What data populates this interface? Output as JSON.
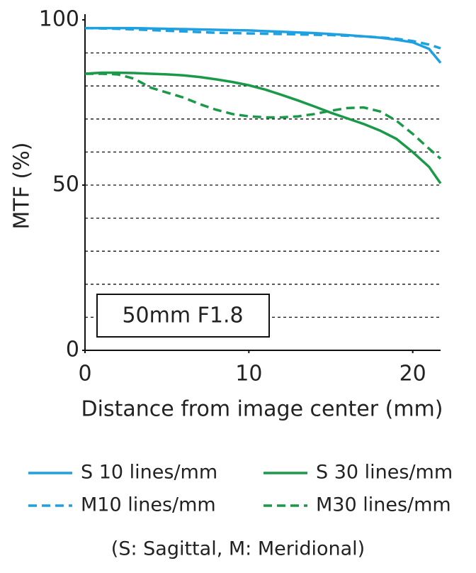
{
  "chart_data": {
    "type": "line",
    "y_label": "MTF (%)",
    "x_label": "Distance from image center (mm)",
    "annotation": "50mm F1.8",
    "footnote": "(S: Sagittal, M: Meridional)",
    "x": [
      0,
      1,
      2,
      3,
      4,
      5,
      6,
      7,
      8,
      9,
      10,
      11,
      12,
      13,
      14,
      15,
      16,
      17,
      18,
      19,
      20,
      21,
      21.7
    ],
    "series": [
      {
        "name": "S 10 lines/mm",
        "color": "#1fa0e0",
        "dash": false,
        "values": [
          97.5,
          97.5,
          97.5,
          97.5,
          97.4,
          97.3,
          97.2,
          97.1,
          97,
          96.9,
          96.8,
          96.6,
          96.4,
          96.2,
          96,
          95.7,
          95.4,
          95,
          94.6,
          94,
          93.2,
          91.2,
          87
        ]
      },
      {
        "name": "M10 lines/mm",
        "color": "#1fa0e0",
        "dash": true,
        "values": [
          97.5,
          97.4,
          97.3,
          97.1,
          96.9,
          96.7,
          96.5,
          96.3,
          96.1,
          96,
          95.9,
          95.8,
          95.7,
          95.6,
          95.5,
          95.4,
          95.2,
          95,
          94.7,
          94.3,
          93.6,
          92.5,
          91.4
        ]
      },
      {
        "name": "S 30 lines/mm",
        "color": "#1a9a48",
        "dash": false,
        "values": [
          83.7,
          84,
          84,
          83.9,
          83.7,
          83.5,
          83.2,
          82.7,
          82,
          81.2,
          80.2,
          78.9,
          77.3,
          75.6,
          73.8,
          71.9,
          70.2,
          68.5,
          66.5,
          64,
          60,
          55.5,
          50.5
        ]
      },
      {
        "name": "M30 lines/mm",
        "color": "#1a9a48",
        "dash": true,
        "values": [
          83.7,
          83.7,
          83.5,
          82.2,
          79.5,
          78,
          76.5,
          74.5,
          72.8,
          71.5,
          70.8,
          70.5,
          70.5,
          70.8,
          71.5,
          72.5,
          73.3,
          73.5,
          72.3,
          69.5,
          65.5,
          61,
          58
        ]
      }
    ],
    "xlim": [
      0,
      21.7
    ],
    "ylim": [
      0,
      100
    ],
    "xticks": [
      0,
      10,
      20
    ],
    "yticks": [
      0,
      50,
      100
    ],
    "grid_lines": [
      10,
      20,
      30,
      40,
      50,
      60,
      70,
      80,
      90
    ]
  }
}
